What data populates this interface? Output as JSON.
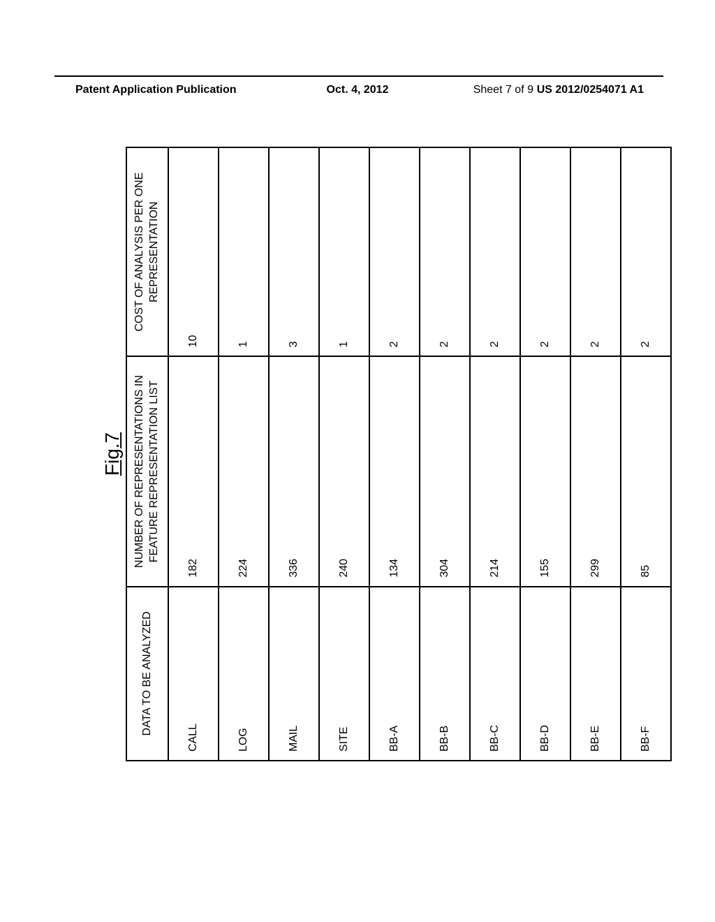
{
  "header": {
    "left": "Patent Application Publication",
    "center": "Oct. 4, 2012",
    "sheet": "Sheet 7 of 9",
    "right": "US 2012/0254071 A1"
  },
  "figure": {
    "label": "Fig.7"
  },
  "table": {
    "columns": [
      "DATA TO BE ANALYZED",
      "NUMBER OF REPRESENTATIONS IN FEATURE REPRESENTATION LIST",
      "COST OF ANALYSIS PER ONE REPRESENTATION"
    ],
    "rows": [
      {
        "data": "CALL",
        "number": "182",
        "cost": "10"
      },
      {
        "data": "LOG",
        "number": "224",
        "cost": "1"
      },
      {
        "data": "MAIL",
        "number": "336",
        "cost": "3"
      },
      {
        "data": "SITE",
        "number": "240",
        "cost": "1"
      },
      {
        "data": "BB-A",
        "number": "134",
        "cost": "2"
      },
      {
        "data": "BB-B",
        "number": "304",
        "cost": "2"
      },
      {
        "data": "BB-C",
        "number": "214",
        "cost": "2"
      },
      {
        "data": "BB-D",
        "number": "155",
        "cost": "2"
      },
      {
        "data": "BB-E",
        "number": "299",
        "cost": "2"
      },
      {
        "data": "BB-F",
        "number": "85",
        "cost": "2"
      }
    ]
  }
}
